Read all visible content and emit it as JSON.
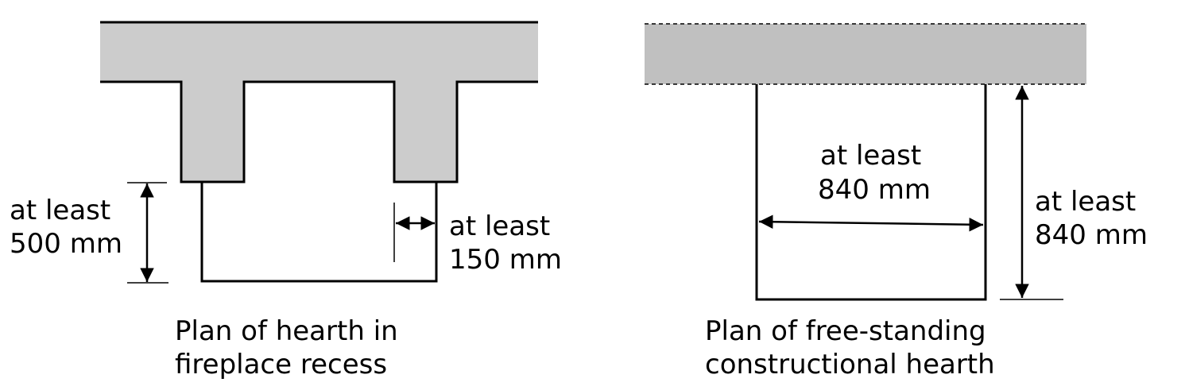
{
  "left_diagram": {
    "depth_label": [
      "at least",
      "500 mm"
    ],
    "margin_label": [
      "at least",
      "150 mm"
    ],
    "caption": [
      "Plan of hearth in",
      "fireplace recess"
    ]
  },
  "right_diagram": {
    "width_label": [
      "at least",
      "840 mm"
    ],
    "depth_label": [
      "at least",
      "840 mm"
    ],
    "caption": [
      "Plan of free-standing",
      "constructional hearth"
    ]
  },
  "colors": {
    "wall_fill": "#cccccc",
    "wall_fill_right": "#c0c0c0",
    "line": "#000000"
  }
}
